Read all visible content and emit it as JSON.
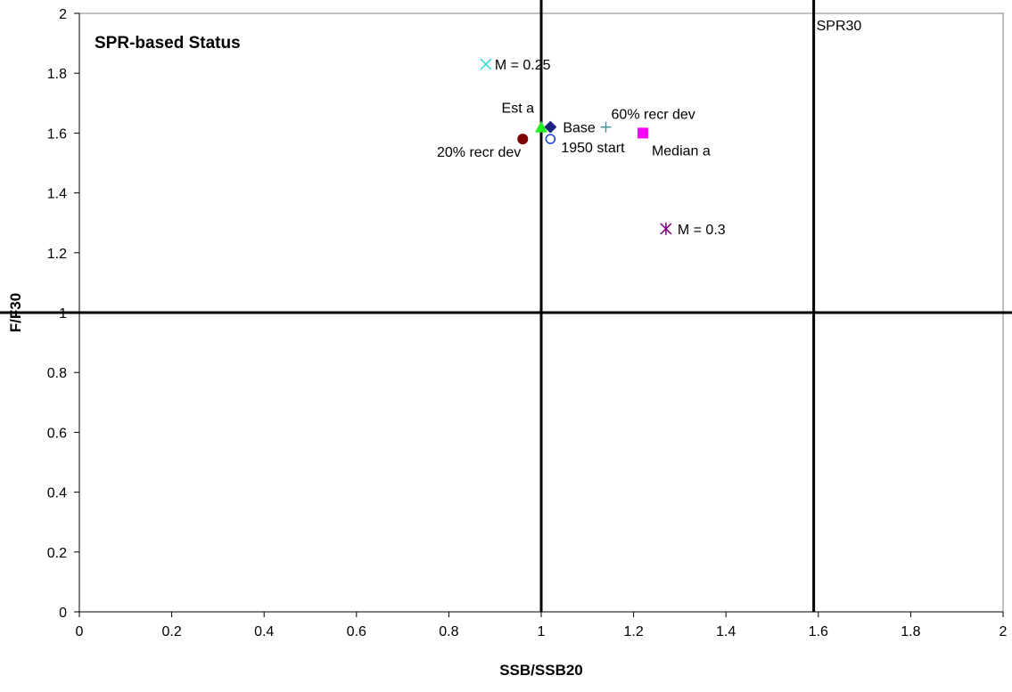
{
  "chart_data": {
    "type": "scatter",
    "title": "SPR-based Status",
    "xlabel": "SSB/SSB20",
    "ylabel": "F/F30",
    "xlim": [
      0,
      2
    ],
    "ylim": [
      0,
      2
    ],
    "x_ticks": [
      "0",
      "0.2",
      "0.4",
      "0.6",
      "0.8",
      "1",
      "1.2",
      "1.4",
      "1.6",
      "1.8",
      "2"
    ],
    "y_ticks": [
      "0",
      "0.2",
      "0.4",
      "0.6",
      "0.8",
      "1",
      "1.2",
      "1.4",
      "1.6",
      "1.8",
      "2"
    ],
    "grid": false,
    "reference_lines": {
      "vertical": [
        1.0,
        1.59
      ],
      "horizontal": [
        1.0
      ]
    },
    "annotations": [
      {
        "text": "SPR30",
        "x": 1.59,
        "y": 1.95
      }
    ],
    "series": [
      {
        "name": "Base",
        "x": 1.02,
        "y": 1.62,
        "marker": "diamond",
        "color": "#1a237e"
      },
      {
        "name": "Est a",
        "x": 1.0,
        "y": 1.62,
        "marker": "triangle",
        "color": "#22ee22"
      },
      {
        "name": "Median a",
        "x": 1.22,
        "y": 1.6,
        "marker": "square",
        "color": "#ff00ff"
      },
      {
        "name": "M = 0.25",
        "x": 0.88,
        "y": 1.83,
        "marker": "x",
        "color": "#33dddd"
      },
      {
        "name": "M = 0.3",
        "x": 1.27,
        "y": 1.28,
        "marker": "star",
        "color": "#800080"
      },
      {
        "name": "20% recr dev",
        "x": 0.96,
        "y": 1.58,
        "marker": "circle",
        "color": "#800000"
      },
      {
        "name": "60% recr dev",
        "x": 1.14,
        "y": 1.62,
        "marker": "plus",
        "color": "#339999"
      },
      {
        "name": "1950 start",
        "x": 1.02,
        "y": 1.58,
        "marker": "open-circle",
        "color": "#1a3ecc"
      }
    ]
  }
}
